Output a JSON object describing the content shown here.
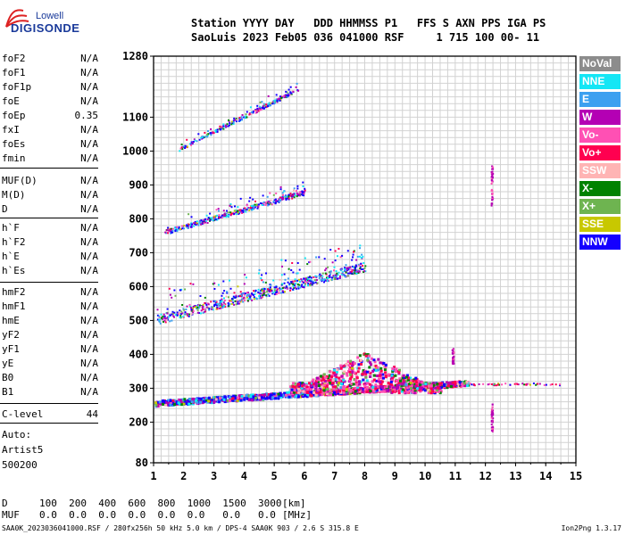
{
  "logo": {
    "line1": "Lowell",
    "line2": "DIGISONDE"
  },
  "header": {
    "line1": "Station YYYY DAY   DDD HHMMSS P1   FFS S AXN PPS IGA PS",
    "line2": "SaoLuis 2023 Feb05 036 041000 RSF     1 715 100 00- 11"
  },
  "params": [
    {
      "name": "foF2",
      "value": "N/A"
    },
    {
      "name": "foF1",
      "value": "N/A"
    },
    {
      "name": "foF1p",
      "value": "N/A"
    },
    {
      "name": "foE",
      "value": "N/A"
    },
    {
      "name": "foEp",
      "value": "0.35"
    },
    {
      "name": "fxI",
      "value": "N/A"
    },
    {
      "name": "foEs",
      "value": "N/A"
    },
    {
      "name": "fmin",
      "value": "N/A"
    },
    {
      "name": "MUF(D)",
      "value": "N/A"
    },
    {
      "name": "M(D)",
      "value": "N/A"
    },
    {
      "name": "D",
      "value": "N/A"
    },
    {
      "name": "h`F",
      "value": "N/A"
    },
    {
      "name": "h`F2",
      "value": "N/A"
    },
    {
      "name": "h`E",
      "value": "N/A"
    },
    {
      "name": "h`Es",
      "value": "N/A"
    },
    {
      "name": "hmF2",
      "value": "N/A"
    },
    {
      "name": "hmF1",
      "value": "N/A"
    },
    {
      "name": "hmE",
      "value": "N/A"
    },
    {
      "name": "yF2",
      "value": "N/A"
    },
    {
      "name": "yF1",
      "value": "N/A"
    },
    {
      "name": "yE",
      "value": "N/A"
    },
    {
      "name": "B0",
      "value": "N/A"
    },
    {
      "name": "B1",
      "value": "N/A"
    },
    {
      "name": "C-level",
      "value": "44"
    }
  ],
  "auto": {
    "label": "Auto:",
    "artist": "Artist5",
    "version": "500200"
  },
  "legend": [
    {
      "label": "NoVal",
      "color": "#8c8c8c"
    },
    {
      "label": "NNE",
      "color": "#14e6f5"
    },
    {
      "label": "E",
      "color": "#3ca0f0"
    },
    {
      "label": "W",
      "color": "#b400b4"
    },
    {
      "label": "Vo-",
      "color": "#ff50b4"
    },
    {
      "label": "Vo+",
      "color": "#ff0050"
    },
    {
      "label": "SSW",
      "color": "#ffb4b4"
    },
    {
      "label": "X-",
      "color": "#008200"
    },
    {
      "label": "X+",
      "color": "#6eb450"
    },
    {
      "label": "SSE",
      "color": "#c8c800"
    },
    {
      "label": "NNW",
      "color": "#1400ff"
    }
  ],
  "bottom": {
    "d_label": "D",
    "d_values": "100  200  400  600  800  1000  1500  3000",
    "d_unit": "[km]",
    "muf_label": "MUF",
    "muf_values": "0.0  0.0  0.0  0.0  0.0  0.0   0.0   0.0",
    "muf_unit": "[MHz]"
  },
  "footer": {
    "text": "SAA0K_2023036041000.RSF / 280fx256h 50 kHz 5.0 km / DPS-4 SAA0K 903 / 2.6 S 315.8 E",
    "version": "Ion2Png 1.3.17"
  },
  "chart_data": {
    "type": "scatter",
    "title": "",
    "xlabel": "",
    "ylabel": "",
    "xlim": [
      1,
      15
    ],
    "ylim": [
      80,
      1280
    ],
    "xticks": [
      "1",
      "2",
      "3",
      "4",
      "5",
      "6",
      "7",
      "8",
      "9",
      "10",
      "11",
      "12",
      "13",
      "14",
      "15"
    ],
    "yticks": [
      "80",
      "200",
      "300",
      "400",
      "500",
      "600",
      "700",
      "800",
      "900",
      "1000",
      "1100",
      "1280"
    ],
    "grid": true,
    "traces": [
      {
        "name": "F2 trace",
        "x_start": 1.0,
        "x_end": 11.4,
        "h_start": 258,
        "h_end": 318,
        "spread": 16
      },
      {
        "name": "2F trace",
        "x_start": 1.1,
        "x_end": 8.0,
        "h_start": 505,
        "h_end": 660,
        "spread": 28
      },
      {
        "name": "3F trace",
        "x_start": 1.3,
        "x_end": 6.0,
        "h_start": 760,
        "h_end": 880,
        "spread": 14
      },
      {
        "name": "4F trace",
        "x_start": 1.8,
        "x_end": 5.8,
        "h_start": 1005,
        "h_end": 1185,
        "spread": 10
      }
    ],
    "spread_f": {
      "x_start": 5.5,
      "x_end": 10.5,
      "h_low": 290,
      "h_high": 410
    },
    "spikes": [
      {
        "x": 12.2,
        "h_low": 175,
        "h_high": 255
      },
      {
        "x": 12.2,
        "h_low": 840,
        "h_high": 960
      },
      {
        "x": 10.9,
        "h_low": 370,
        "h_high": 420
      }
    ]
  }
}
